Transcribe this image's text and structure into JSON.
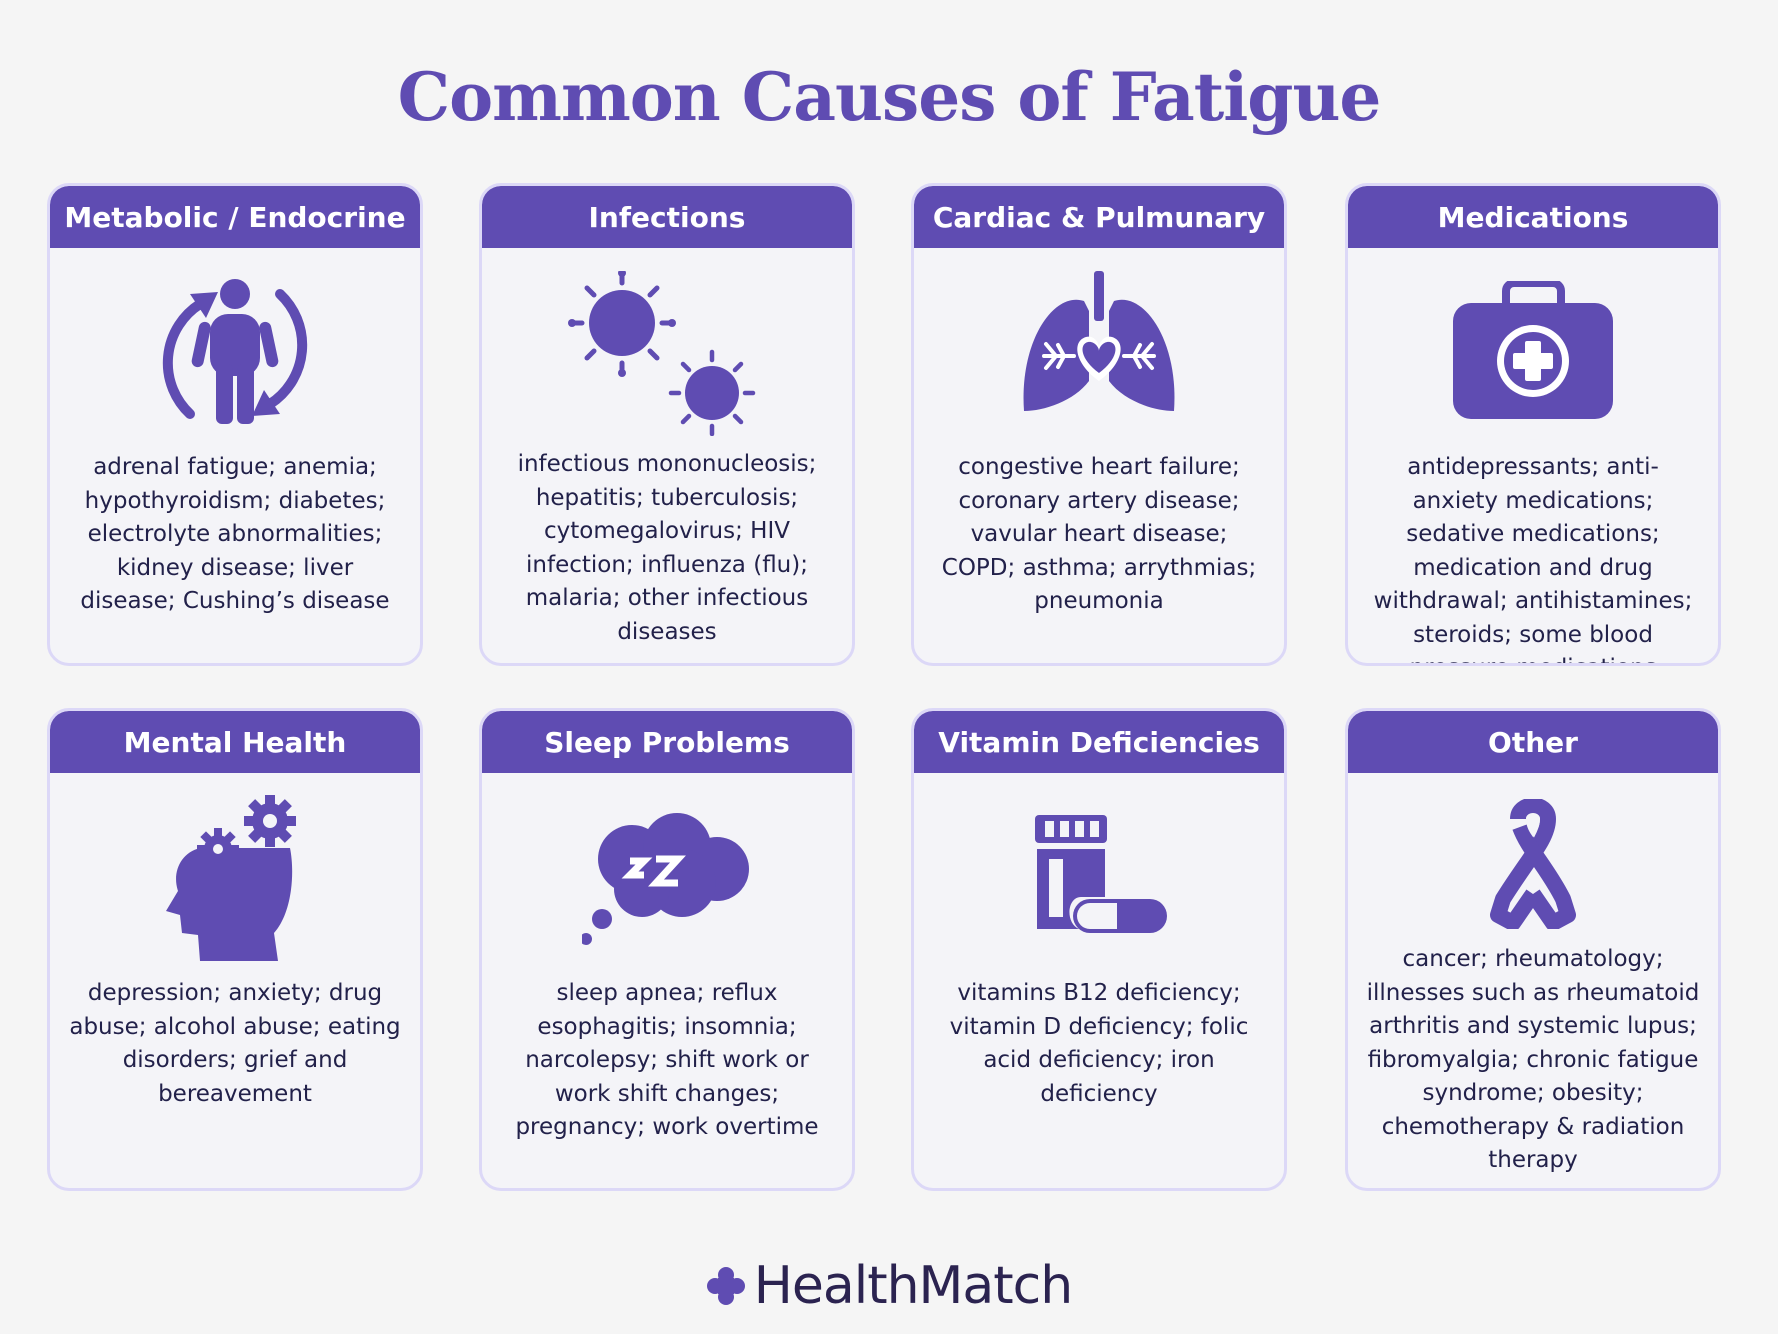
{
  "title": "Common Causes of Fatigue",
  "brand": "HealthMatch",
  "colors": {
    "accent": "#5f4cb2",
    "card_border": "#dcd8f7",
    "text": "#22214a",
    "background": "#f5f5f5"
  },
  "cards": [
    {
      "heading": "Metabolic / Endocrine",
      "icon": "person-cycle-icon",
      "text": "adrenal fatigue; anemia; hypothyroidism; diabetes; electrolyte abnormalities; kidney disease; liver disease; Cushing’s disease"
    },
    {
      "heading": "Infections",
      "icon": "virus-icon",
      "text": "infectious mononucleosis; hepatitis; tuberculosis; cytomegalovirus; HIV infection; influenza (flu); malaria; other infectious diseases"
    },
    {
      "heading": "Cardiac & Pulmunary",
      "icon": "lungs-heart-icon",
      "text": "congestive heart failure; coronary artery disease; vavular heart disease; COPD; asthma; arrythmias; pneumonia"
    },
    {
      "heading": "Medications",
      "icon": "first-aid-kit-icon",
      "text": "antidepressants; anti-anxiety medications; sedative medications; medication and drug withdrawal; antihistamines; steroids; some blood pressure medications"
    },
    {
      "heading": "Mental Health",
      "icon": "head-gears-icon",
      "text": "depression; anxiety; drug abuse; alcohol abuse; eating disorders; grief and bereavement"
    },
    {
      "heading": "Sleep Problems",
      "icon": "sleep-cloud-icon",
      "text": "sleep apnea; reflux esophagitis; insomnia; narcolepsy; shift work or work shift changes; pregnancy; work overtime"
    },
    {
      "heading": "Vitamin Deficiencies",
      "icon": "pill-bottle-icon",
      "text": "vitamins B12 deficiency; vitamin D deficiency; folic acid deficiency; iron deficiency"
    },
    {
      "heading": "Other",
      "icon": "ribbon-icon",
      "text": "cancer; rheumatology; illnesses such as rheumatoid arthritis and systemic lupus; fibromyalgia; chronic fatigue syndrome; obesity; chemotherapy & radiation therapy"
    }
  ]
}
